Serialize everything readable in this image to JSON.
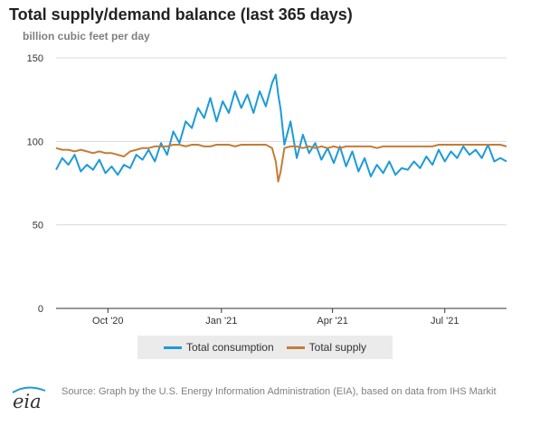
{
  "header": {
    "title": "Total supply/demand balance (last 365 days)",
    "units": "billion cubic feet per day"
  },
  "footer": {
    "logo_text": "eia",
    "source": "Source: Graph by the U.S. Energy Information Administration (EIA), based on data from IHS Markit"
  },
  "legend": {
    "consumption": "Total consumption",
    "supply": "Total supply"
  },
  "colors": {
    "consumption": "#1E9BD7",
    "supply": "#C47D37",
    "grid": "#d9d9d9",
    "axis": "#333333"
  },
  "chart_data": {
    "type": "line",
    "title": "Total supply/demand balance (last 365 days)",
    "ylabel": "billion cubic feet per day",
    "xlabel": "",
    "ylim": [
      0,
      150
    ],
    "yticks": [
      0,
      50,
      100,
      150
    ],
    "xlim": [
      "2020-08-20",
      "2021-08-20"
    ],
    "xticks": [
      {
        "date": "2020-10-01",
        "label": "Oct '20"
      },
      {
        "date": "2021-01-01",
        "label": "Jan '21"
      },
      {
        "date": "2021-04-01",
        "label": "Apr '21"
      },
      {
        "date": "2021-07-01",
        "label": "Jul '21"
      }
    ],
    "grid": true,
    "legend_position": "bottom",
    "series": [
      {
        "name": "Total consumption",
        "x": [
          "2020-08-20",
          "2020-08-25",
          "2020-08-30",
          "2020-09-04",
          "2020-09-09",
          "2020-09-14",
          "2020-09-19",
          "2020-09-24",
          "2020-09-29",
          "2020-10-04",
          "2020-10-09",
          "2020-10-14",
          "2020-10-19",
          "2020-10-24",
          "2020-10-29",
          "2020-11-03",
          "2020-11-08",
          "2020-11-13",
          "2020-11-18",
          "2020-11-23",
          "2020-11-28",
          "2020-12-03",
          "2020-12-08",
          "2020-12-13",
          "2020-12-18",
          "2020-12-23",
          "2020-12-28",
          "2021-01-02",
          "2021-01-07",
          "2021-01-12",
          "2021-01-17",
          "2021-01-22",
          "2021-01-27",
          "2021-02-01",
          "2021-02-06",
          "2021-02-11",
          "2021-02-14",
          "2021-02-16",
          "2021-02-18",
          "2021-02-21",
          "2021-02-26",
          "2021-03-03",
          "2021-03-08",
          "2021-03-13",
          "2021-03-18",
          "2021-03-23",
          "2021-03-28",
          "2021-04-02",
          "2021-04-07",
          "2021-04-12",
          "2021-04-17",
          "2021-04-22",
          "2021-04-27",
          "2021-05-02",
          "2021-05-07",
          "2021-05-12",
          "2021-05-17",
          "2021-05-22",
          "2021-05-27",
          "2021-06-01",
          "2021-06-06",
          "2021-06-11",
          "2021-06-16",
          "2021-06-21",
          "2021-06-26",
          "2021-07-01",
          "2021-07-06",
          "2021-07-11",
          "2021-07-16",
          "2021-07-21",
          "2021-07-26",
          "2021-07-31",
          "2021-08-05",
          "2021-08-10",
          "2021-08-15",
          "2021-08-20"
        ],
        "y": [
          83,
          90,
          86,
          92,
          82,
          86,
          83,
          89,
          81,
          85,
          80,
          86,
          84,
          92,
          89,
          95,
          88,
          99,
          92,
          106,
          99,
          112,
          108,
          120,
          114,
          126,
          112,
          124,
          117,
          130,
          120,
          128,
          117,
          130,
          121,
          135,
          140,
          128,
          119,
          98,
          112,
          90,
          104,
          93,
          99,
          89,
          96,
          87,
          97,
          85,
          94,
          82,
          90,
          79,
          86,
          81,
          88,
          80,
          84,
          83,
          88,
          84,
          91,
          86,
          95,
          88,
          94,
          90,
          97,
          92,
          95,
          90,
          98,
          88,
          90,
          88
        ]
      },
      {
        "name": "Total supply",
        "x": [
          "2020-08-20",
          "2020-08-25",
          "2020-08-30",
          "2020-09-04",
          "2020-09-09",
          "2020-09-14",
          "2020-09-19",
          "2020-09-24",
          "2020-09-29",
          "2020-10-04",
          "2020-10-09",
          "2020-10-14",
          "2020-10-19",
          "2020-10-24",
          "2020-10-29",
          "2020-11-03",
          "2020-11-08",
          "2020-11-13",
          "2020-11-18",
          "2020-11-23",
          "2020-11-28",
          "2020-12-03",
          "2020-12-08",
          "2020-12-13",
          "2020-12-18",
          "2020-12-23",
          "2020-12-28",
          "2021-01-02",
          "2021-01-07",
          "2021-01-12",
          "2021-01-17",
          "2021-01-22",
          "2021-01-27",
          "2021-02-01",
          "2021-02-06",
          "2021-02-11",
          "2021-02-14",
          "2021-02-16",
          "2021-02-18",
          "2021-02-21",
          "2021-02-26",
          "2021-03-03",
          "2021-03-08",
          "2021-03-13",
          "2021-03-18",
          "2021-03-23",
          "2021-03-28",
          "2021-04-02",
          "2021-04-07",
          "2021-04-12",
          "2021-04-17",
          "2021-04-22",
          "2021-04-27",
          "2021-05-02",
          "2021-05-07",
          "2021-05-12",
          "2021-05-17",
          "2021-05-22",
          "2021-05-27",
          "2021-06-01",
          "2021-06-06",
          "2021-06-11",
          "2021-06-16",
          "2021-06-21",
          "2021-06-26",
          "2021-07-01",
          "2021-07-06",
          "2021-07-11",
          "2021-07-16",
          "2021-07-21",
          "2021-07-26",
          "2021-07-31",
          "2021-08-05",
          "2021-08-10",
          "2021-08-15",
          "2021-08-20"
        ],
        "y": [
          96,
          95,
          95,
          94,
          95,
          94,
          93,
          94,
          93,
          93,
          92,
          91,
          94,
          95,
          96,
          96,
          97,
          97,
          97,
          98,
          98,
          97,
          98,
          98,
          97,
          97,
          98,
          98,
          98,
          97,
          98,
          98,
          98,
          98,
          98,
          96,
          88,
          76,
          82,
          96,
          97,
          97,
          96,
          97,
          96,
          97,
          96,
          97,
          96,
          97,
          97,
          97,
          97,
          97,
          96,
          97,
          97,
          97,
          97,
          97,
          97,
          97,
          97,
          97,
          98,
          98,
          98,
          98,
          98,
          98,
          98,
          98,
          98,
          98,
          98,
          97
        ]
      }
    ]
  }
}
